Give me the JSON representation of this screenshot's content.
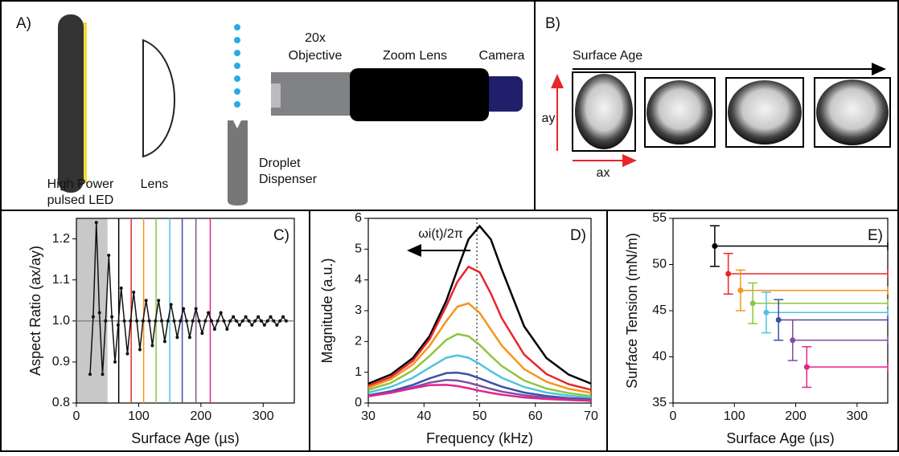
{
  "panels": {
    "a": {
      "label": "A)",
      "led": [
        "High Power",
        "pulsed LED"
      ],
      "lens": "Lens",
      "dispenser": [
        "Droplet",
        "Dispenser"
      ],
      "objective": [
        "20x",
        "Objective"
      ],
      "zoom": "Zoom Lens",
      "camera": "Camera"
    },
    "b": {
      "label": "B)",
      "arrow": "Surface Age",
      "ay": "ay",
      "ax": "ax"
    }
  },
  "chart_data": [
    {
      "type": "line",
      "label": "C)",
      "xlabel": "Surface Age (µs)",
      "ylabel": "Aspect Ratio (ax/ay)",
      "x": [
        22,
        27,
        32,
        37,
        42,
        47,
        52,
        57,
        62,
        67,
        72,
        77,
        82,
        87,
        92,
        97,
        102,
        107,
        112,
        117,
        122,
        127,
        132,
        137,
        142,
        147,
        152,
        157,
        162,
        167,
        172,
        177,
        182,
        187,
        192,
        197,
        202,
        207,
        212,
        217,
        222,
        227,
        232,
        237,
        242,
        247,
        252,
        257,
        262,
        267,
        272,
        277,
        282,
        287,
        292,
        297,
        302,
        307,
        312,
        317,
        322,
        327,
        332,
        337
      ],
      "values": [
        0.87,
        1.01,
        1.24,
        1.02,
        0.87,
        1.0,
        1.16,
        1.01,
        0.9,
        0.99,
        1.08,
        1.0,
        0.92,
        1.0,
        1.07,
        1.0,
        0.93,
        1.0,
        1.05,
        1.0,
        0.94,
        1.0,
        1.05,
        1.0,
        0.95,
        1.0,
        1.04,
        1.0,
        0.96,
        1.0,
        1.03,
        1.0,
        0.96,
        1.0,
        1.03,
        1.0,
        0.97,
        1.0,
        1.02,
        1.0,
        0.98,
        1.0,
        1.02,
        1.0,
        0.98,
        1.0,
        1.01,
        1.0,
        0.99,
        1.0,
        1.01,
        1.0,
        0.99,
        1.0,
        1.01,
        1.0,
        0.99,
        1.0,
        1.01,
        1.0,
        0.99,
        1.0,
        1.01,
        1.0
      ],
      "color": "#111111",
      "shade": [
        0,
        50
      ],
      "hline": 1,
      "vlines": [
        68,
        88,
        108,
        128,
        150,
        170,
        192,
        215
      ],
      "vline_colors": [
        "#000000",
        "#e8262a",
        "#f7941d",
        "#8dc63f",
        "#4fc3e0",
        "#3f4fa8",
        "#7e4fa0",
        "#e0258f"
      ],
      "xlim": [
        0,
        350
      ],
      "xticks": [
        0,
        100,
        200,
        300
      ],
      "ylim": [
        0.8,
        1.25
      ],
      "yticks": [
        0.8,
        0.9,
        {
          "value": 1,
          "label": "1.0"
        },
        1.1,
        1.2
      ]
    },
    {
      "type": "line",
      "label": "D)",
      "xlabel": "Frequency (kHz)",
      "ylabel": "Magnitude (a.u.)",
      "annotation": "ωi(t)/2π",
      "vline": 49.5,
      "x": [
        30,
        34,
        38,
        41,
        44,
        46,
        48,
        50,
        52,
        54,
        58,
        62,
        66,
        70
      ],
      "series": [
        {
          "color": "#000000",
          "values": [
            0.63,
            0.92,
            1.46,
            2.17,
            3.32,
            4.33,
            5.32,
            5.75,
            5.32,
            4.33,
            2.49,
            1.46,
            0.92,
            0.63
          ]
        },
        {
          "color": "#e8262a",
          "values": [
            0.56,
            0.84,
            1.37,
            2.07,
            3.15,
            3.94,
            4.43,
            4.25,
            3.56,
            2.75,
            1.57,
            0.94,
            0.61,
            0.43
          ]
        },
        {
          "color": "#f7941d",
          "values": [
            0.5,
            0.77,
            1.25,
            1.86,
            2.66,
            3.13,
            3.24,
            2.93,
            2.39,
            1.86,
            1.1,
            0.69,
            0.46,
            0.33
          ]
        },
        {
          "color": "#8dc63f",
          "values": [
            0.43,
            0.65,
            1.06,
            1.53,
            2.05,
            2.24,
            2.17,
            1.89,
            1.53,
            1.2,
            0.73,
            0.47,
            0.32,
            0.23
          ]
        },
        {
          "color": "#4fc3e0",
          "values": [
            0.34,
            0.52,
            0.82,
            1.15,
            1.47,
            1.55,
            1.47,
            1.27,
            1.03,
            0.82,
            0.52,
            0.34,
            0.24,
            0.17
          ]
        },
        {
          "color": "#3f4fa8",
          "values": [
            0.25,
            0.38,
            0.59,
            0.8,
            0.97,
            0.99,
            0.93,
            0.8,
            0.66,
            0.53,
            0.34,
            0.23,
            0.16,
            0.12
          ]
        },
        {
          "color": "#7e4fa0",
          "values": [
            0.23,
            0.34,
            0.51,
            0.66,
            0.75,
            0.73,
            0.66,
            0.56,
            0.46,
            0.37,
            0.25,
            0.17,
            0.12,
            0.09
          ]
        },
        {
          "color": "#e0258f",
          "values": [
            0.22,
            0.33,
            0.48,
            0.58,
            0.59,
            0.55,
            0.48,
            0.4,
            0.33,
            0.27,
            0.18,
            0.13,
            0.1,
            0.07
          ]
        }
      ],
      "xlim": [
        30,
        70
      ],
      "xticks": [
        30,
        40,
        50,
        60,
        70
      ],
      "ylim": [
        0,
        6
      ],
      "yticks": [
        0,
        1,
        2,
        3,
        4,
        5,
        6
      ]
    },
    {
      "type": "scatter",
      "label": "E)",
      "xlabel": "Surface Age (µs)",
      "ylabel": "Surface Tension (mN/m)",
      "x": [
        68,
        90,
        110,
        130,
        152,
        172,
        195,
        218
      ],
      "values": [
        52,
        49,
        47.2,
        45.8,
        44.8,
        44,
        41.8,
        38.9
      ],
      "errors": [
        2.2,
        2.2,
        2.2,
        2.2,
        2.2,
        2.2,
        2.2,
        2.2
      ],
      "colors": [
        "#000000",
        "#e8262a",
        "#f7941d",
        "#8dc63f",
        "#4fc3e0",
        "#3f4fa8",
        "#7e4fa0",
        "#e0258f"
      ],
      "xlim": [
        0,
        350
      ],
      "xticks": [
        0,
        100,
        200,
        300
      ],
      "ylim": [
        35,
        55
      ],
      "yticks": [
        35,
        40,
        45,
        50,
        55
      ]
    }
  ]
}
